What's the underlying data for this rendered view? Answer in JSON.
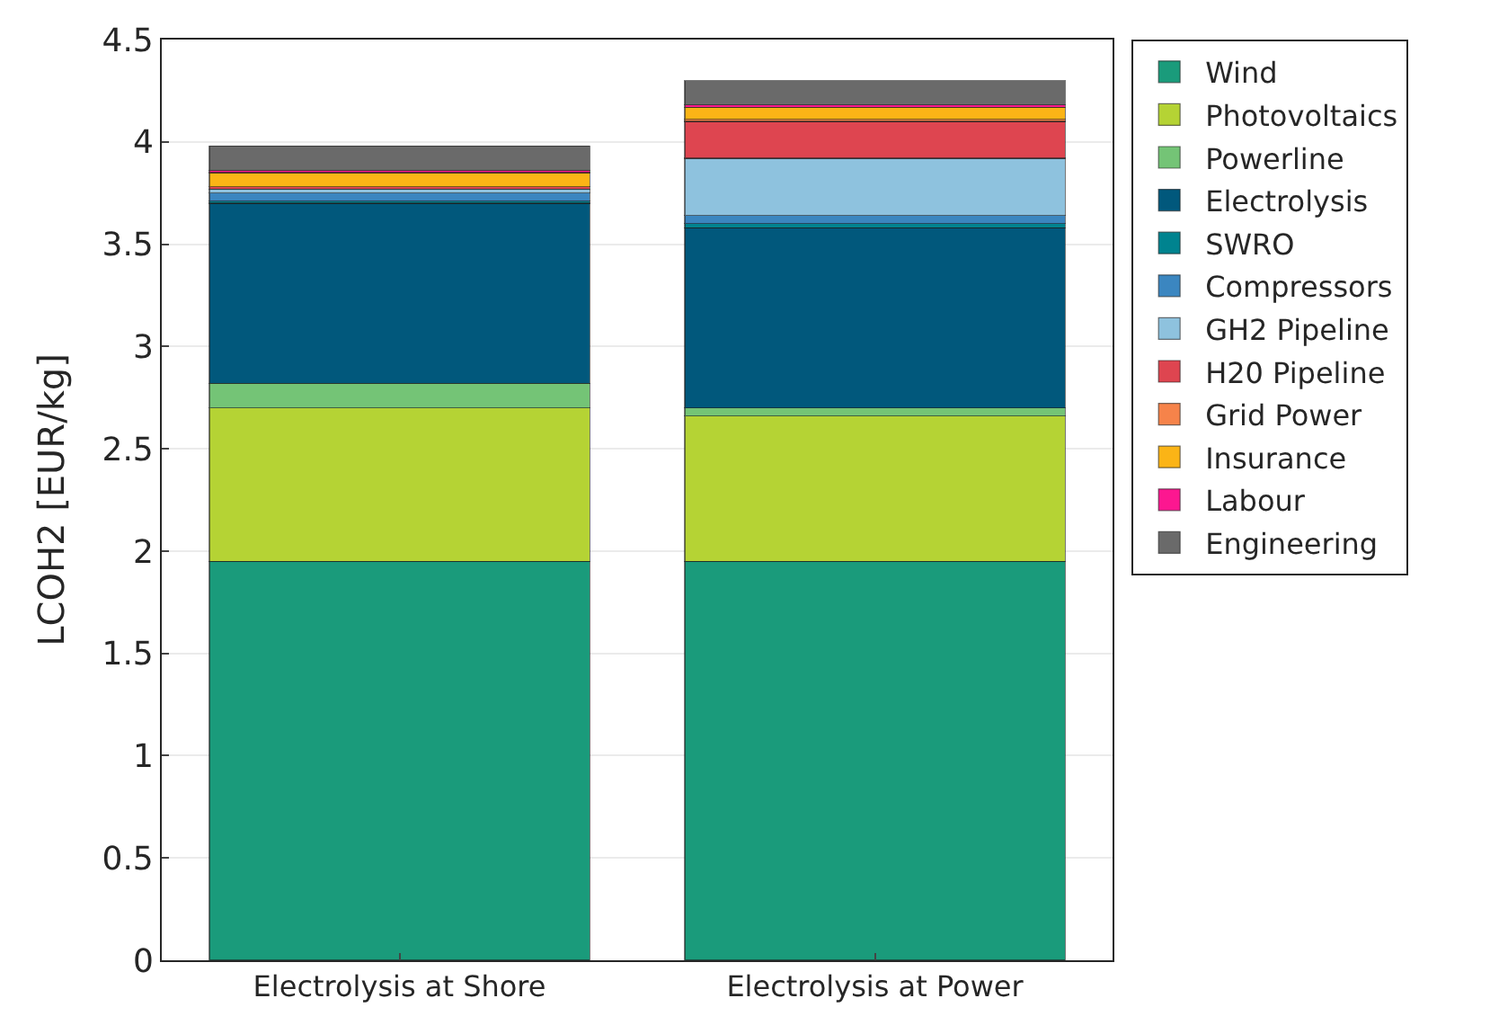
{
  "chart_data": {
    "type": "bar",
    "stacked": true,
    "ylabel": "LCOH2 [EUR/kg]",
    "categories": [
      "Electrolysis at Shore",
      "Electrolysis at Power"
    ],
    "series": [
      {
        "name": "Wind",
        "color": "#1a9b7b",
        "values": [
          1.95,
          1.95
        ]
      },
      {
        "name": "Photovoltaics",
        "color": "#b5d334",
        "values": [
          0.75,
          0.71
        ]
      },
      {
        "name": "Powerline",
        "color": "#74c476",
        "values": [
          0.12,
          0.04
        ]
      },
      {
        "name": "Electrolysis",
        "color": "#01587c",
        "values": [
          0.88,
          0.88
        ]
      },
      {
        "name": "SWRO",
        "color": "#00838f",
        "values": [
          0.01,
          0.02
        ]
      },
      {
        "name": "Compressors",
        "color": "#3b86c0",
        "values": [
          0.04,
          0.04
        ]
      },
      {
        "name": "GH2 Pipeline",
        "color": "#8ec2de",
        "values": [
          0.02,
          0.28
        ]
      },
      {
        "name": "H20 Pipeline",
        "color": "#de4550",
        "values": [
          0.01,
          0.18
        ]
      },
      {
        "name": "Grid Power",
        "color": "#f6834a",
        "values": [
          0,
          0.01
        ]
      },
      {
        "name": "Insurance",
        "color": "#fbb416",
        "values": [
          0.07,
          0.06
        ]
      },
      {
        "name": "Labour",
        "color": "#fc1790",
        "values": [
          0.01,
          0.01
        ]
      },
      {
        "name": "Engineering",
        "color": "#6a6a6a",
        "values": [
          0.12,
          0.12
        ]
      }
    ],
    "ylim": [
      0,
      4.5
    ],
    "yticks": [
      0,
      0.5,
      1,
      1.5,
      2,
      2.5,
      3,
      3.5,
      4,
      4.5
    ],
    "grid": "y",
    "legend": "top right"
  }
}
